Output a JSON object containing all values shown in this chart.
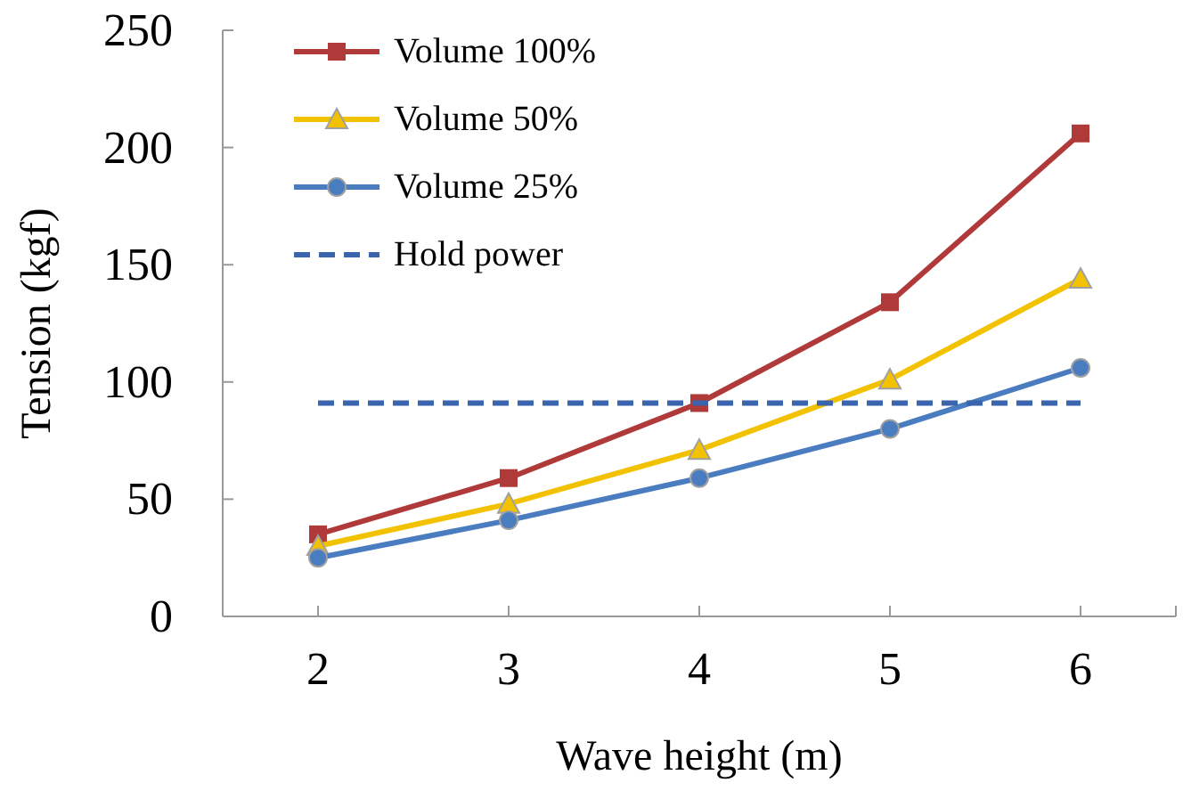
{
  "chart_data": {
    "type": "line",
    "xlabel": "Wave height (m)",
    "ylabel": "Tension (kgf)",
    "x": [
      2,
      3,
      4,
      5,
      6
    ],
    "xlim": [
      1.5,
      6.5
    ],
    "xticks": [
      2,
      3,
      4,
      5,
      6
    ],
    "ylim": [
      0,
      250
    ],
    "yticks": [
      0,
      50,
      100,
      150,
      200,
      250
    ],
    "grid": false,
    "legend": "top left",
    "series": [
      {
        "name": "Volume 100%",
        "color": "#b03a3a",
        "marker": "square",
        "values": [
          35,
          59,
          91,
          134,
          206
        ]
      },
      {
        "name": "Volume 50%",
        "color": "#f2c200",
        "marker": "triangle",
        "values": [
          30,
          48,
          71,
          101,
          144
        ]
      },
      {
        "name": "Volume 25%",
        "color": "#4a7cc0",
        "marker": "circle",
        "values": [
          25,
          41,
          59,
          80,
          106
        ]
      },
      {
        "name": "Hold power",
        "color": "#3a64ad",
        "marker": "none",
        "line_style": "dashed",
        "x": [
          2,
          6
        ],
        "values": [
          91,
          91
        ]
      }
    ]
  }
}
